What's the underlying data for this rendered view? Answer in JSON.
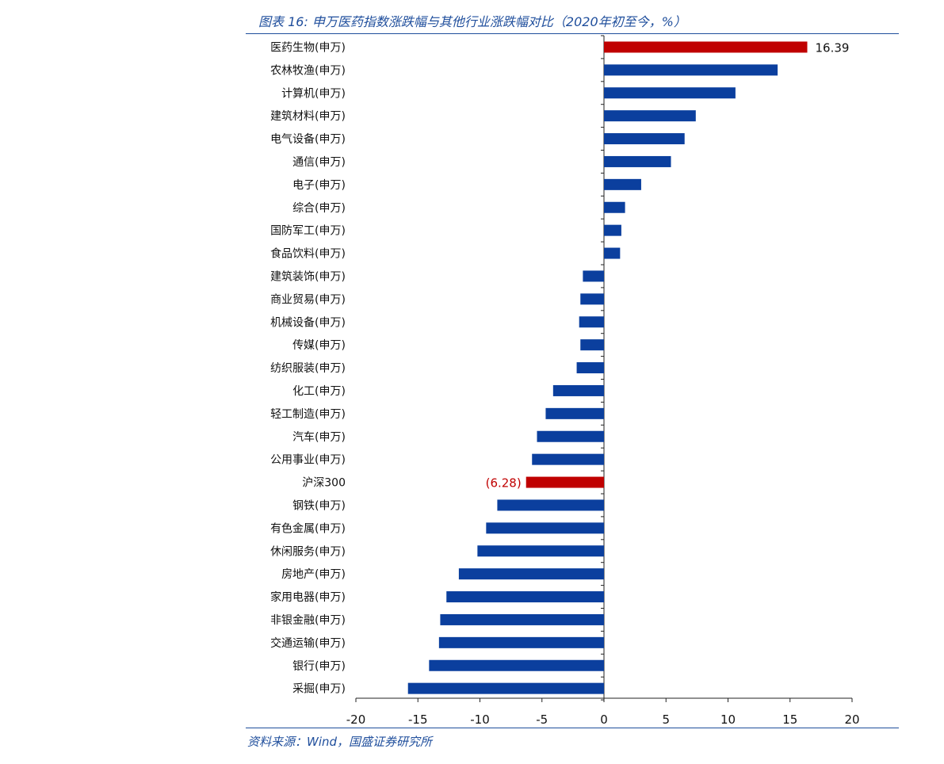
{
  "title": "图表 16:  申万医药指数涨跌幅与其他行业涨跌幅对比（2020年初至今，%）",
  "source": "资料来源：Wind，国盛证券研究所",
  "colors": {
    "bar": "#0B3F9E",
    "highlight": "#C00000",
    "text": "#111111",
    "rule": "#1F4E9C"
  },
  "chart_data": {
    "type": "bar",
    "orientation": "horizontal",
    "title": "",
    "xlabel": "",
    "ylabel": "",
    "xlim": [
      -20,
      20
    ],
    "x_ticks": [
      "-20",
      "-15",
      "-10",
      "-5",
      "0",
      "5",
      "10",
      "15",
      "20"
    ],
    "grid": false,
    "legend": "none",
    "categories": [
      "医药生物(申万)",
      "农林牧渔(申万)",
      "计算机(申万)",
      "建筑材料(申万)",
      "电气设备(申万)",
      "通信(申万)",
      "电子(申万)",
      "综合(申万)",
      "国防军工(申万)",
      "食品饮料(申万)",
      "建筑装饰(申万)",
      "商业贸易(申万)",
      "机械设备(申万)",
      "传媒(申万)",
      "纺织服装(申万)",
      "化工(申万)",
      "轻工制造(申万)",
      "汽车(申万)",
      "公用事业(申万)",
      "沪深300",
      "钢铁(申万)",
      "有色金属(申万)",
      "休闲服务(申万)",
      "房地产(申万)",
      "家用电器(申万)",
      "非银金融(申万)",
      "交通运输(申万)",
      "银行(申万)",
      "采掘(申万)"
    ],
    "values": [
      16.39,
      14.0,
      10.6,
      7.4,
      6.5,
      5.4,
      3.0,
      1.7,
      1.4,
      1.3,
      -1.7,
      -1.9,
      -2.0,
      -1.9,
      -2.2,
      -4.1,
      -4.7,
      -5.4,
      -5.8,
      -6.28,
      -8.6,
      -9.5,
      -10.2,
      -11.7,
      -12.7,
      -13.2,
      -13.3,
      -14.1,
      -15.8
    ],
    "highlight": [
      "医药生物(申万)",
      "沪深300"
    ],
    "data_labels": [
      {
        "category": "医药生物(申万)",
        "text": "16.39"
      },
      {
        "category": "沪深300",
        "text": "(6.28)"
      }
    ]
  }
}
